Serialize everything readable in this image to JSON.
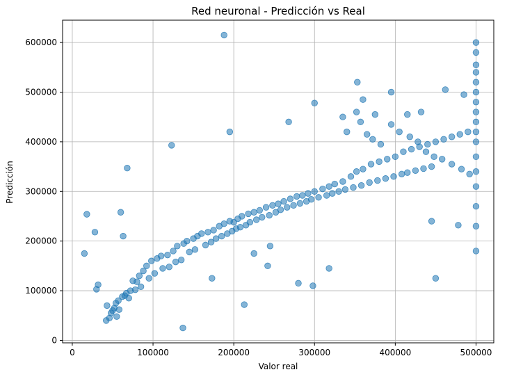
{
  "chart_data": {
    "type": "scatter",
    "title": "Red neuronal - Predicción vs Real",
    "xlabel": "Valor real",
    "ylabel": "Predicción",
    "xlim": [
      -12000,
      522000
    ],
    "ylim": [
      -5000,
      645000
    ],
    "xticks": [
      0,
      100000,
      200000,
      300000,
      400000,
      500000
    ],
    "xtick_labels": [
      "0",
      "100000",
      "200000",
      "300000",
      "400000",
      "500000"
    ],
    "yticks": [
      0,
      100000,
      200000,
      300000,
      400000,
      500000,
      600000
    ],
    "ytick_labels": [
      "0",
      "100000",
      "200000",
      "300000",
      "400000",
      "500000",
      "600000"
    ],
    "grid": true,
    "marker_color": "#1f77b4",
    "marker_alpha": 0.55,
    "series": [
      {
        "x": [
          15000,
          18000,
          28000,
          30000,
          32000,
          68000,
          43000,
          48000,
          55000,
          58000,
          60000,
          63000,
          65000,
          70000,
          72000,
          75000,
          80000,
          83000,
          88000,
          92000,
          98000,
          105000,
          110000,
          118000,
          125000,
          130000,
          138000,
          142000,
          150000,
          155000,
          160000,
          168000,
          175000,
          182000,
          188000,
          195000,
          200000,
          205000,
          210000,
          218000,
          225000,
          232000,
          240000,
          248000,
          255000,
          262000,
          270000,
          278000,
          285000,
          292000,
          300000,
          310000,
          318000,
          325000,
          335000,
          345000,
          352000,
          360000,
          370000,
          380000,
          390000,
          400000,
          410000,
          420000,
          430000,
          440000,
          450000,
          460000,
          470000,
          480000,
          490000,
          500000,
          500000,
          500000,
          500000,
          500000,
          500000,
          500000,
          500000,
          500000,
          500000,
          500000,
          500000,
          500000,
          500000,
          500000,
          500000,
          500000,
          188000,
          123000,
          137000,
          173000,
          213000,
          242000,
          280000,
          298000,
          318000,
          353000,
          375000,
          450000,
          445000,
          478000,
          268000,
          195000,
          225000,
          245000,
          300000,
          335000,
          360000,
          395000,
          415000,
          432000,
          462000,
          485000,
          340000,
          352000,
          357000,
          365000,
          372000,
          382000,
          395000,
          405000,
          418000,
          428000,
          438000,
          448000,
          458000,
          470000,
          482000,
          492000,
          42000,
          46000,
          50000,
          52000,
          54000,
          57000,
          62000,
          67000,
          78000,
          85000,
          95000,
          102000,
          112000,
          120000,
          128000,
          135000,
          145000,
          152000,
          165000,
          172000,
          178000,
          185000,
          192000,
          198000,
          203000,
          208000,
          215000,
          220000,
          228000,
          235000,
          244000,
          252000,
          258000,
          266000,
          274000,
          282000,
          290000,
          296000,
          305000,
          315000,
          322000,
          330000,
          338000,
          348000,
          358000,
          368000,
          378000,
          388000,
          398000,
          408000,
          415000,
          425000,
          435000,
          445000
        ],
        "y": [
          175000,
          254000,
          218000,
          103000,
          112000,
          347000,
          70000,
          55000,
          48000,
          62000,
          258000,
          210000,
          90000,
          85000,
          100000,
          120000,
          118000,
          130000,
          140000,
          150000,
          160000,
          165000,
          170000,
          172000,
          180000,
          190000,
          195000,
          200000,
          205000,
          210000,
          215000,
          218000,
          222000,
          230000,
          235000,
          240000,
          238000,
          245000,
          250000,
          255000,
          258000,
          262000,
          268000,
          272000,
          275000,
          280000,
          285000,
          290000,
          292000,
          296000,
          300000,
          305000,
          310000,
          315000,
          320000,
          330000,
          340000,
          345000,
          355000,
          360000,
          365000,
          370000,
          380000,
          385000,
          390000,
          395000,
          400000,
          405000,
          410000,
          415000,
          420000,
          600000,
          580000,
          555000,
          540000,
          520000,
          500000,
          480000,
          460000,
          440000,
          420000,
          400000,
          370000,
          340000,
          310000,
          270000,
          230000,
          180000,
          615000,
          393000,
          25000,
          125000,
          72000,
          150000,
          115000,
          110000,
          145000,
          520000,
          455000,
          125000,
          240000,
          232000,
          440000,
          420000,
          175000,
          190000,
          478000,
          450000,
          485000,
          500000,
          455000,
          460000,
          505000,
          495000,
          420000,
          460000,
          440000,
          415000,
          405000,
          395000,
          435000,
          420000,
          410000,
          400000,
          380000,
          370000,
          365000,
          355000,
          345000,
          335000,
          40000,
          45000,
          60000,
          65000,
          75000,
          80000,
          88000,
          95000,
          102000,
          108000,
          125000,
          135000,
          145000,
          148000,
          158000,
          162000,
          178000,
          183000,
          192000,
          198000,
          205000,
          210000,
          215000,
          220000,
          225000,
          228000,
          232000,
          238000,
          243000,
          248000,
          252000,
          258000,
          263000,
          268000,
          272000,
          276000,
          280000,
          284000,
          288000,
          292000,
          296000,
          300000,
          304000,
          308000,
          312000,
          318000,
          322000,
          326000,
          330000,
          335000,
          338000,
          342000,
          346000,
          350000
        ]
      }
    ]
  }
}
